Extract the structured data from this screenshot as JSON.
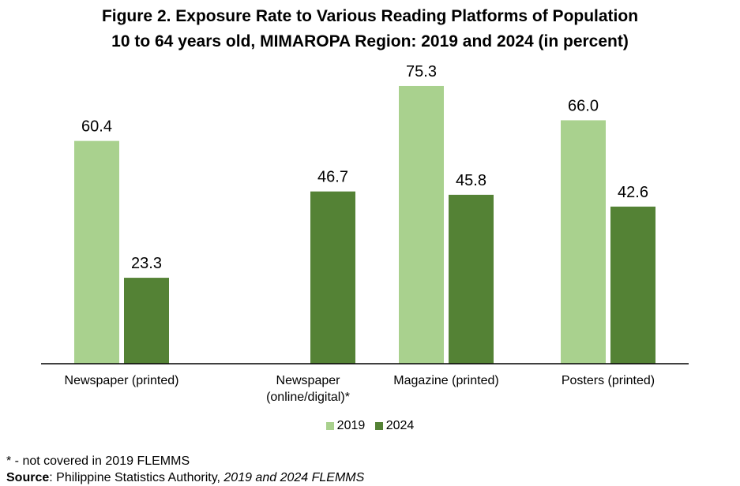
{
  "chart_data": {
    "type": "bar",
    "title": "Figure 2. Exposure Rate to Various Reading Platforms of Population",
    "subtitle": "10 to 64 years old, MIMAROPA Region: 2019 and 2024 (in percent)",
    "categories": [
      [
        "Newspaper (printed)"
      ],
      [
        "Newspaper",
        "(online/digital)*"
      ],
      [
        "Magazine (printed)"
      ],
      [
        "Posters (printed)"
      ]
    ],
    "series": [
      {
        "name": "2019",
        "color": "#a9d18e",
        "values": [
          60.4,
          null,
          75.3,
          66.0
        ]
      },
      {
        "name": "2024",
        "color": "#548235",
        "values": [
          23.3,
          46.7,
          45.8,
          42.6
        ]
      }
    ],
    "ylim": [
      0,
      80
    ],
    "grid": false,
    "legend": "bottom"
  },
  "footnote": {
    "note": "* - not covered in 2019 FLEMMS",
    "source_label": "Source",
    "source_text": ": Philippine Statistics Authority, ",
    "source_italic": "2019 and 2024 FLEMMS"
  }
}
